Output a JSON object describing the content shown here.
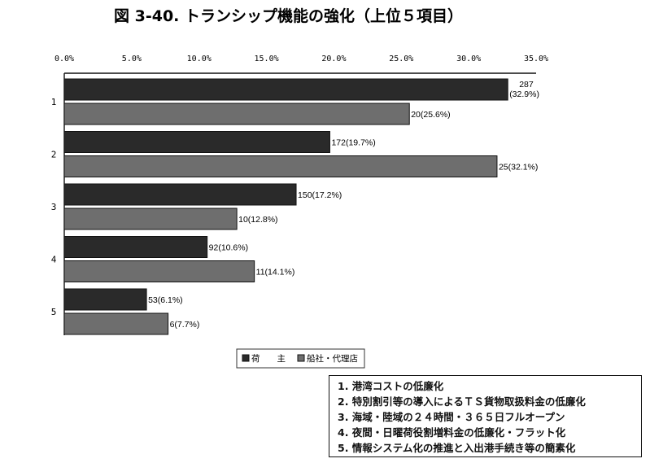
{
  "chart_data": {
    "type": "bar",
    "orientation": "horizontal",
    "title": "図 3-40. トランシップ機能の強化（上位５項目）",
    "xlim": [
      0,
      35
    ],
    "x_ticks": [
      "0.0%",
      "5.0%",
      "10.0%",
      "15.0%",
      "20.0%",
      "25.0%",
      "30.0%",
      "35.0%"
    ],
    "categories": [
      "1",
      "2",
      "3",
      "4",
      "5"
    ],
    "series": [
      {
        "name": "荷　　主",
        "color": "#2a2a2a",
        "values": [
          32.9,
          19.7,
          17.2,
          10.6,
          6.1
        ],
        "labels": [
          "287(32.9%)",
          "172(19.7%)",
          "150(17.2%)",
          "92(10.6%)",
          "53(6.1%)"
        ]
      },
      {
        "name": "船社・代理店",
        "color": "#6e6e6e",
        "values": [
          25.6,
          32.1,
          12.8,
          14.1,
          7.7
        ],
        "labels": [
          "20(25.6%)",
          "25(32.1%)",
          "10(12.8%)",
          "11(14.1%)",
          "6(7.7%)"
        ]
      }
    ],
    "legend_position": "bottom-center",
    "grid": false
  },
  "notes": [
    "1.  港湾コストの低廉化",
    "2.  特別割引等の導入によるＴＳ貨物取扱料金の低廉化",
    "3.  海域・陸域の２４時間・３６５日フルオープン",
    "4.  夜間・日曜荷役割増料金の低廉化・フラット化",
    "5.  情報システム化の推進と入出港手続き等の簡素化"
  ]
}
